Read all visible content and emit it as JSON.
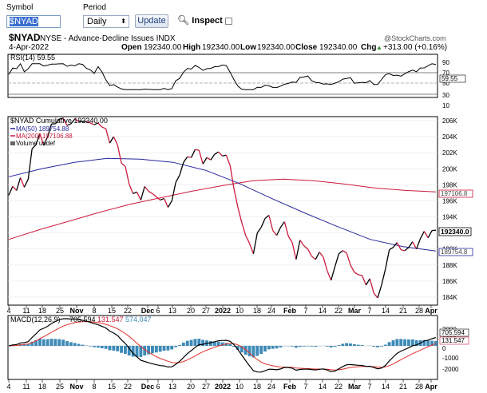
{
  "toolbar": {
    "symbol_label": "Symbol",
    "symbol_value": "$NYAD",
    "period_label": "Period",
    "period_value": "Daily",
    "update_label": "Update",
    "inspect_label": "Inspect"
  },
  "header": {
    "symbol": "$NYAD",
    "exchange_desc": "NYSE - Advance-Decline Issues INDX",
    "watermark": "@StockCharts.com",
    "date": "4-Apr-2022",
    "open_label": "Open",
    "open": "192340.00",
    "high_label": "High",
    "high": "192340.00",
    "low_label": "Low",
    "low": "192340.00",
    "close_label": "Close",
    "close": "192340.00",
    "chg_label": "Chg",
    "chg": "+313.00 (+0.16%)",
    "chg_arrow": "▲"
  },
  "rsi": {
    "label": "RSI(14) 59.55",
    "ticks": [
      "90",
      "70",
      "50",
      "30",
      "10"
    ],
    "value_tag": "59.55"
  },
  "main": {
    "legend_title": "$NYAD Cumulative 192340.00",
    "legend_ma50": "MA(50) 189754.88",
    "legend_ma200": "MA(200) 197106.88",
    "legend_volume": "Volume undef",
    "yticks": [
      "206K",
      "204K",
      "202K",
      "200K",
      "198K",
      "196K",
      "194K",
      "192K",
      "190K",
      "188K",
      "186K",
      "184K"
    ],
    "tag_close": "192340.0",
    "tag_ma200": "197106.8",
    "tag_ma50": "189754.8",
    "xticks": [
      {
        "t": "4"
      },
      {
        "t": "11"
      },
      {
        "t": "18"
      },
      {
        "t": "25"
      },
      {
        "t": "Nov",
        "bold": true
      },
      {
        "t": "8"
      },
      {
        "t": "15"
      },
      {
        "t": "22"
      },
      {
        "t": "Dec",
        "bold": true
      },
      {
        "t": "6"
      },
      {
        "t": "13"
      },
      {
        "t": "20"
      },
      {
        "t": "27"
      },
      {
        "t": "2022",
        "bold": true
      },
      {
        "t": "10"
      },
      {
        "t": "18"
      },
      {
        "t": "24"
      },
      {
        "t": "Feb",
        "bold": true
      },
      {
        "t": "7"
      },
      {
        "t": "14"
      },
      {
        "t": "22"
      },
      {
        "t": "Mar",
        "bold": true
      },
      {
        "t": "7"
      },
      {
        "t": "14"
      },
      {
        "t": "21"
      },
      {
        "t": "28"
      },
      {
        "t": "Apr",
        "bold": true
      }
    ]
  },
  "macd": {
    "label": "MACD(12,26,9)",
    "v1": "705.594",
    "v2": "131.547",
    "v3": "574.047",
    "ticks": [
      "2000",
      "1000",
      "0",
      "-1000",
      "-2000"
    ],
    "tag1": "705.594",
    "tag2": "131.547"
  },
  "colors": {
    "price_up": "#000000",
    "price_down": "#cc1a3c",
    "ma50": "#26269c",
    "ma200": "#cc1a3c",
    "hist": "#3d8ab8",
    "signal": "#e0302a"
  },
  "chart_data": {
    "type": "line",
    "title": "$NYAD NYSE - Advance-Decline Issues INDX",
    "ylabel": "",
    "ylim": [
      183000,
      206000
    ],
    "series": [
      {
        "name": "$NYAD Cumulative",
        "values": [
          196700,
          197800,
          197300,
          198900,
          197700,
          198700,
          202500,
          203000,
          204400,
          202900,
          204000,
          205600,
          205600,
          206200,
          206300,
          205400,
          205600,
          206200,
          205900,
          205900,
          205900,
          205700,
          205500,
          205700,
          205200,
          205000,
          203200,
          204000,
          203000,
          200700,
          200300,
          198100,
          196900,
          197100,
          196100,
          197800,
          197200,
          196900,
          196500,
          196100,
          196300,
          195200,
          196000,
          198300,
          199200,
          200800,
          201500,
          201400,
          202400,
          202300,
          200600,
          201400,
          201100,
          201800,
          202100,
          201600,
          201700,
          200400,
          197500,
          195200,
          193300,
          191700,
          190700,
          189400,
          192000,
          192700,
          193800,
          194200,
          192300,
          191700,
          192700,
          193400,
          191600,
          190800,
          188700,
          191100,
          190400,
          190000,
          189100,
          188700,
          189600,
          189000,
          187300,
          186100,
          187800,
          189400,
          189800,
          189500,
          188000,
          187100,
          186800,
          186700,
          185500,
          186300,
          184500,
          183900,
          185500,
          187500,
          189900,
          190200,
          190800,
          189900,
          189800,
          190200,
          190900,
          190000,
          191300,
          192200,
          191400,
          192300,
          192340
        ]
      },
      {
        "name": "MA(50)",
        "values": [
          199000,
          200000,
          200800,
          201300,
          201200,
          200800,
          199800,
          198200,
          196300,
          194500,
          192800,
          191200,
          190300,
          189750
        ]
      },
      {
        "name": "MA(200)",
        "values": [
          191200,
          192400,
          193500,
          194600,
          195600,
          196400,
          197200,
          197900,
          198500,
          198700,
          198500,
          198100,
          197600,
          197300,
          197107
        ]
      }
    ]
  }
}
